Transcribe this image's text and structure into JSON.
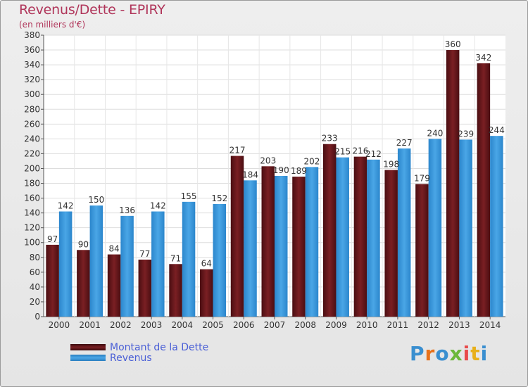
{
  "title": "Revenus/Dette - EPIRY",
  "subtitle": "(en milliers d'€)",
  "legend": {
    "dette_label": "Montant de la Dette",
    "revenus_label": "Revenus"
  },
  "brand": {
    "letters": [
      "P",
      "r",
      "o",
      "x",
      "i",
      "t",
      "i"
    ],
    "colors": [
      "#3a8fd0",
      "#e8711a",
      "#3a8fd0",
      "#6cb83a",
      "#e84a4a",
      "#e8b01a",
      "#3a8fd0"
    ]
  },
  "colors": {
    "dette": "#7a1f23",
    "revenus": "#4aa6e6",
    "text": "#333333"
  },
  "chart_data": {
    "type": "bar",
    "title": "Revenus/Dette - EPIRY",
    "subtitle": "(en milliers d'€)",
    "categories": [
      "2000",
      "2001",
      "2002",
      "2003",
      "2004",
      "2005",
      "2006",
      "2007",
      "2008",
      "2009",
      "2010",
      "2011",
      "2012",
      "2013",
      "2014"
    ],
    "series": [
      {
        "name": "Montant de la Dette",
        "values": [
          97,
          90,
          84,
          77,
          71,
          64,
          217,
          203,
          189,
          233,
          216,
          198,
          179,
          360,
          342
        ]
      },
      {
        "name": "Revenus",
        "values": [
          142,
          150,
          136,
          142,
          155,
          152,
          184,
          190,
          202,
          215,
          212,
          227,
          240,
          239,
          244
        ]
      }
    ],
    "ylim": [
      0,
      380
    ],
    "ytick_step": 20,
    "grid": true,
    "legend_position": "bottom-left"
  }
}
